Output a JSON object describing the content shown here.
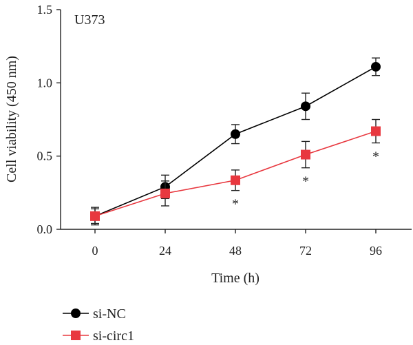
{
  "chart_data": {
    "type": "line",
    "panel_label": "U373",
    "xlabel": "Time (h)",
    "ylabel": "Cell viability (450 nm)",
    "x": [
      0,
      24,
      48,
      72,
      96
    ],
    "x_tick_labels": [
      "0",
      "24",
      "48",
      "72",
      "96"
    ],
    "ylim": [
      0,
      1.5
    ],
    "y_ticks": [
      0,
      0.5,
      1.0,
      1.5
    ],
    "y_tick_labels": [
      "0.0",
      "0.5",
      "1.0",
      "1.5"
    ],
    "legend_position": "bottom-left",
    "grid": false,
    "series": [
      {
        "name": "si-NC",
        "marker": "circle",
        "color": "#000000",
        "values": [
          0.09,
          0.29,
          0.65,
          0.84,
          1.11
        ],
        "errors": [
          0.06,
          0.08,
          0.065,
          0.09,
          0.06
        ],
        "significance": [
          "",
          "",
          "",
          "",
          ""
        ]
      },
      {
        "name": "si-circ1",
        "marker": "square",
        "color": "#e8383f",
        "values": [
          0.09,
          0.245,
          0.335,
          0.51,
          0.67
        ],
        "errors": [
          0.05,
          0.085,
          0.07,
          0.09,
          0.08
        ],
        "significance": [
          "",
          "",
          "*",
          "*",
          "*"
        ]
      }
    ]
  }
}
